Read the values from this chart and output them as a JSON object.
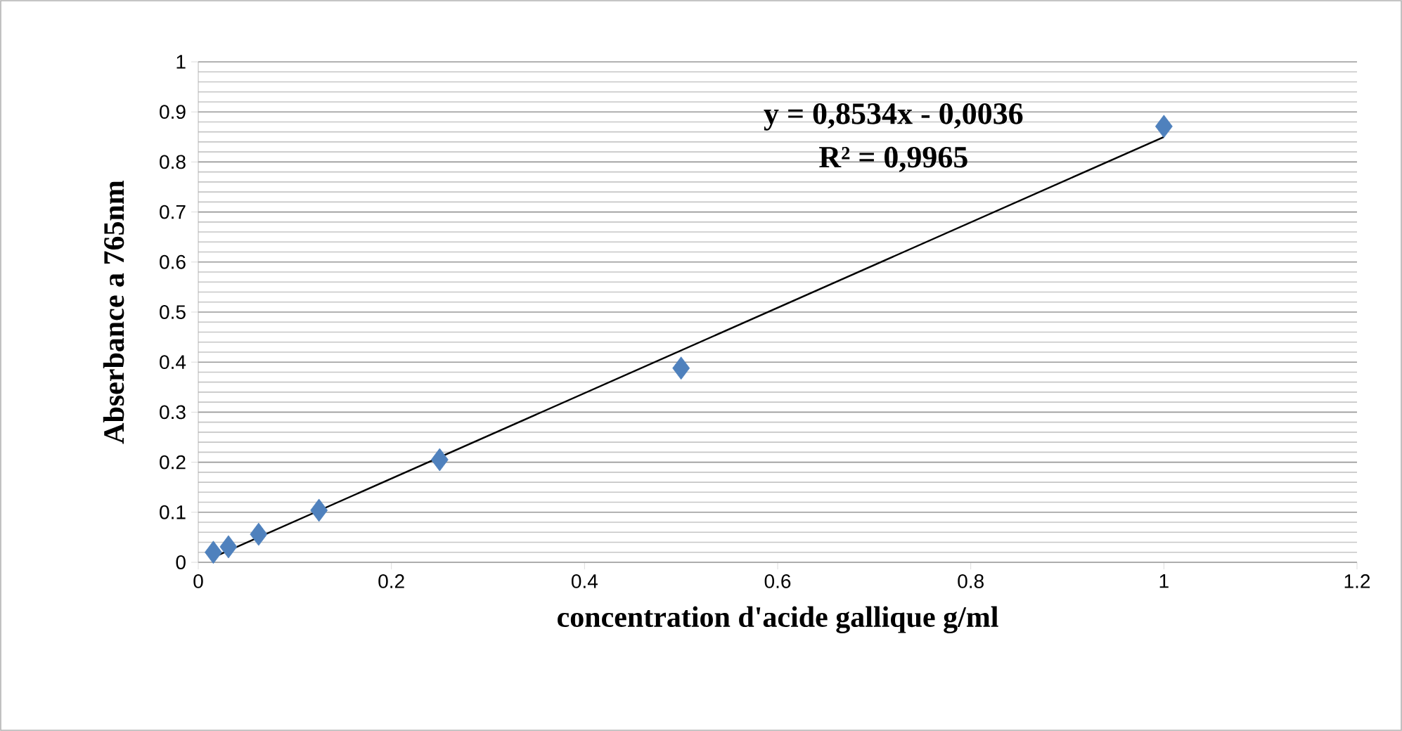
{
  "chart_data": {
    "type": "scatter",
    "xlabel": "concentration d'acide gallique g/ml",
    "ylabel": "Abserbance a 765nm",
    "series": [
      {
        "color": "#4f81bd",
        "marker": "diamond",
        "x": [
          0.0156,
          0.03125,
          0.0625,
          0.125,
          0.25,
          0.5,
          1
        ],
        "values": [
          0.02,
          0.031,
          0.056,
          0.104,
          0.205,
          0.388,
          0.871
        ]
      },
      {
        "type": "line",
        "color": "#000000",
        "marker": "none",
        "line_style": "solid",
        "x": [
          0.0156,
          1
        ],
        "values": [
          0.01,
          0.85
        ]
      }
    ],
    "annotations": [
      "y = 0,8534x - 0,0036",
      "R² = 0,9965"
    ],
    "xlim": [
      0,
      1.2
    ],
    "xticks": [
      0,
      0.2,
      0.4,
      0.6,
      0.8,
      1,
      1.2
    ],
    "ylim": [
      0,
      1
    ],
    "yticks": [
      0,
      0.1,
      0.2,
      0.3,
      0.4,
      0.5,
      0.6,
      0.7,
      0.8,
      0.9,
      1
    ],
    "grid": "y"
  }
}
